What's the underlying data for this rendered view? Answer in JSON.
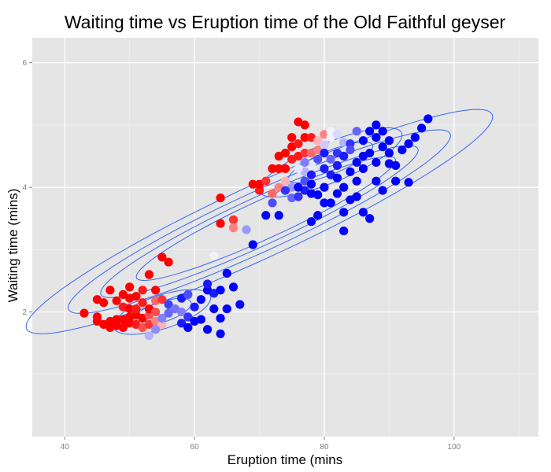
{
  "chart_data": {
    "type": "scatter",
    "title": "Waiting time vs Eruption time of the Old Faithful geyser",
    "xlabel": "Eruption time (mins",
    "ylabel": "Waiting time (mins)",
    "xlim": [
      35,
      113
    ],
    "ylim": [
      0.0,
      6.4
    ],
    "x_ticks": [
      40,
      60,
      80,
      100
    ],
    "y_ticks": [
      2,
      4,
      6
    ],
    "grid": true,
    "legend": "none",
    "colors": {
      "panel_bg": "#e5e5e5",
      "grid_major": "#ffffff",
      "grid_minor": "#f2f2f2",
      "contour": "#3366ff",
      "low": "#ff0000",
      "mid": "#ffffff",
      "high": "#0000ff"
    },
    "contour_levels": [
      {
        "cx": 70,
        "cy": 3.45,
        "rmajor": 36.0,
        "rminor": 0.64,
        "angle": 0.0468
      },
      {
        "cx": 70,
        "cy": 3.45,
        "rmajor": 29.5,
        "rminor": 0.52,
        "angle": 0.0468
      },
      {
        "cx": 70,
        "cy": 3.45,
        "rmajor": 24.5,
        "rminor": 0.42,
        "angle": 0.0468
      },
      {
        "cx": 71,
        "cy": 3.5,
        "rmajor": 20.0,
        "rminor": 0.34,
        "angle": 0.0468
      },
      {
        "cx": 55,
        "cy": 2.0,
        "rmajor": 7.5,
        "rminor": 0.28,
        "angle": 0.03
      },
      {
        "cx": 55,
        "cy": 2.0,
        "rmajor": 4.5,
        "rminor": 0.17,
        "angle": 0.03
      },
      {
        "cx": 81,
        "cy": 4.4,
        "rmajor": 11.0,
        "rminor": 0.34,
        "angle": 0.04
      },
      {
        "cx": 81,
        "cy": 4.4,
        "rmajor": 6.5,
        "rminor": 0.2,
        "angle": 0.04
      }
    ],
    "points": [
      [
        43,
        1.98,
        -1
      ],
      [
        45,
        1.92,
        -1
      ],
      [
        45,
        1.85,
        -1
      ],
      [
        45,
        2.2,
        -1
      ],
      [
        46,
        1.8,
        -1
      ],
      [
        46,
        2.15,
        -1
      ],
      [
        47,
        1.75,
        -1
      ],
      [
        47,
        1.85,
        -1
      ],
      [
        47,
        2.35,
        -1
      ],
      [
        48,
        1.78,
        -1
      ],
      [
        48,
        1.88,
        -1
      ],
      [
        48,
        2.18,
        -1
      ],
      [
        49,
        1.75,
        -1
      ],
      [
        49,
        1.88,
        -1
      ],
      [
        49,
        2.08,
        -0.9
      ],
      [
        49,
        2.28,
        -1
      ],
      [
        50,
        1.82,
        -1
      ],
      [
        50,
        1.92,
        -1
      ],
      [
        50,
        2.05,
        -1
      ],
      [
        50,
        2.22,
        -1
      ],
      [
        50,
        2.4,
        -1
      ],
      [
        51,
        1.8,
        -0.9
      ],
      [
        51,
        1.95,
        -1
      ],
      [
        51,
        2.25,
        -1
      ],
      [
        51,
        2.05,
        -0.9
      ],
      [
        52,
        1.75,
        -0.7
      ],
      [
        52,
        1.9,
        -1
      ],
      [
        52,
        2.15,
        -0.9
      ],
      [
        52,
        2.35,
        -0.9
      ],
      [
        53,
        1.8,
        -0.8
      ],
      [
        53,
        1.95,
        -0.7
      ],
      [
        53,
        2.05,
        -1
      ],
      [
        53,
        2.6,
        -1
      ],
      [
        54,
        1.85,
        -0.5
      ],
      [
        54,
        2.0,
        -0.7
      ],
      [
        54,
        2.18,
        -0.6
      ],
      [
        54,
        2.35,
        -1
      ],
      [
        55,
        2.88,
        -1
      ],
      [
        56,
        2.8,
        -1
      ],
      [
        55,
        1.8,
        -0.3
      ],
      [
        55,
        2.2,
        -0.8
      ],
      [
        53,
        1.62,
        0.3
      ],
      [
        54,
        1.72,
        0.45
      ],
      [
        55,
        1.9,
        0.5
      ],
      [
        56,
        1.98,
        0.6
      ],
      [
        56,
        2.12,
        0.75
      ],
      [
        57,
        2.05,
        0.55
      ],
      [
        58,
        1.82,
        0.9
      ],
      [
        58,
        2.0,
        0.5
      ],
      [
        58,
        2.22,
        0.9
      ],
      [
        59,
        1.92,
        0.8
      ],
      [
        59,
        2.28,
        0.7
      ],
      [
        59,
        1.75,
        1
      ],
      [
        60,
        1.85,
        1
      ],
      [
        60,
        2.08,
        0.9
      ],
      [
        61,
        1.88,
        1
      ],
      [
        61,
        2.2,
        1
      ],
      [
        62,
        1.72,
        1
      ],
      [
        62,
        2.35,
        1
      ],
      [
        62,
        2.45,
        0.9
      ],
      [
        63,
        2.05,
        1
      ],
      [
        63,
        2.3,
        0.9
      ],
      [
        63,
        2.9,
        0.05
      ],
      [
        64,
        1.65,
        1
      ],
      [
        64,
        1.9,
        1
      ],
      [
        64,
        2.35,
        1
      ],
      [
        65,
        2.05,
        1
      ],
      [
        65,
        2.62,
        1
      ],
      [
        66,
        2.4,
        1
      ],
      [
        67,
        2.12,
        1
      ],
      [
        64,
        3.83,
        -1
      ],
      [
        64,
        3.42,
        -1
      ],
      [
        66,
        3.48,
        -0.8
      ],
      [
        66,
        3.35,
        -0.5
      ],
      [
        68,
        3.32,
        0.4
      ],
      [
        69,
        3.08,
        1
      ],
      [
        69,
        4.05,
        -1
      ],
      [
        70,
        3.95,
        -0.9
      ],
      [
        70,
        4.05,
        -1
      ],
      [
        71,
        4.1,
        -0.8
      ],
      [
        72,
        3.9,
        -0.6
      ],
      [
        71,
        3.55,
        1
      ],
      [
        73,
        3.55,
        1
      ],
      [
        72,
        4.3,
        -1
      ],
      [
        73,
        4.3,
        -1
      ],
      [
        73,
        4.5,
        -1
      ],
      [
        74,
        4.55,
        -1
      ],
      [
        74,
        4.3,
        -1
      ],
      [
        75,
        4.45,
        -0.9
      ],
      [
        75,
        4.65,
        -1
      ],
      [
        75,
        4.8,
        -1
      ],
      [
        76,
        4.5,
        -0.9
      ],
      [
        76,
        4.7,
        -0.9
      ],
      [
        76,
        5.05,
        -1
      ],
      [
        77,
        5.0,
        -1
      ],
      [
        77,
        4.8,
        -1
      ],
      [
        77,
        4.55,
        -0.8
      ],
      [
        78,
        4.8,
        -0.9
      ],
      [
        78,
        4.55,
        -0.6
      ],
      [
        79,
        4.6,
        -0.5
      ],
      [
        79,
        4.75,
        -0.3
      ],
      [
        80,
        4.85,
        -0.5
      ],
      [
        80,
        4.68,
        0.2
      ],
      [
        81,
        4.8,
        0.05
      ],
      [
        81,
        4.9,
        0.05
      ],
      [
        82,
        4.85,
        0.15
      ],
      [
        83,
        4.72,
        0.3
      ],
      [
        74,
        4.1,
        -0.3
      ],
      [
        75,
        4.0,
        0.4
      ],
      [
        75,
        3.83,
        0.6
      ],
      [
        76,
        3.85,
        0.8
      ],
      [
        77,
        3.95,
        0.9
      ],
      [
        77,
        4.1,
        0.7
      ],
      [
        77,
        4.25,
        0.3
      ],
      [
        78,
        4.35,
        0.1
      ],
      [
        78,
        4.2,
        0.9
      ],
      [
        78,
        3.9,
        1
      ],
      [
        78,
        3.45,
        1
      ],
      [
        79,
        3.55,
        1
      ],
      [
        79,
        3.88,
        1
      ],
      [
        80,
        3.75,
        1
      ],
      [
        80,
        4.0,
        1
      ],
      [
        80,
        4.3,
        0.9
      ],
      [
        81,
        4.2,
        0.9
      ],
      [
        81,
        3.75,
        1
      ],
      [
        81,
        4.45,
        0.6
      ],
      [
        82,
        4.55,
        0.8
      ],
      [
        82,
        4.35,
        0.9
      ],
      [
        82,
        4.15,
        1
      ],
      [
        82,
        3.9,
        1
      ],
      [
        83,
        4.0,
        1
      ],
      [
        83,
        3.3,
        1
      ],
      [
        83,
        3.6,
        1
      ],
      [
        83,
        4.5,
        0.9
      ],
      [
        84,
        4.7,
        0.8
      ],
      [
        84,
        4.25,
        1
      ],
      [
        84,
        3.8,
        1
      ],
      [
        84,
        4.6,
        0.7
      ],
      [
        85,
        4.9,
        0.6
      ],
      [
        85,
        4.4,
        1
      ],
      [
        85,
        4.1,
        1
      ],
      [
        85,
        3.85,
        1
      ],
      [
        86,
        4.75,
        1
      ],
      [
        86,
        4.5,
        1
      ],
      [
        86,
        4.3,
        1
      ],
      [
        86,
        3.6,
        1
      ],
      [
        87,
        4.9,
        1
      ],
      [
        87,
        4.55,
        1
      ],
      [
        87,
        3.5,
        1
      ],
      [
        88,
        5.0,
        1
      ],
      [
        88,
        4.8,
        1
      ],
      [
        88,
        4.4,
        1
      ],
      [
        88,
        4.1,
        1
      ],
      [
        89,
        4.9,
        1
      ],
      [
        89,
        4.65,
        1
      ],
      [
        89,
        3.95,
        1
      ],
      [
        90,
        4.75,
        1
      ],
      [
        90,
        4.55,
        1
      ],
      [
        90,
        4.38,
        1
      ],
      [
        91,
        4.1,
        1
      ],
      [
        91,
        4.35,
        1
      ],
      [
        92,
        4.6,
        1
      ],
      [
        93,
        4.7,
        1
      ],
      [
        93,
        4.08,
        1
      ],
      [
        94,
        4.8,
        1
      ],
      [
        95,
        4.95,
        1
      ],
      [
        96,
        5.1,
        1
      ],
      [
        76,
        4.3,
        0.1
      ],
      [
        77,
        4.4,
        0.5
      ],
      [
        79,
        4.45,
        0.7
      ],
      [
        80,
        4.55,
        0.9
      ],
      [
        73,
        4.0,
        -0.5
      ],
      [
        72,
        3.75,
        0.7
      ],
      [
        74,
        3.95,
        0.8
      ],
      [
        76,
        4.0,
        1
      ],
      [
        78,
        4.05,
        1
      ]
    ]
  }
}
